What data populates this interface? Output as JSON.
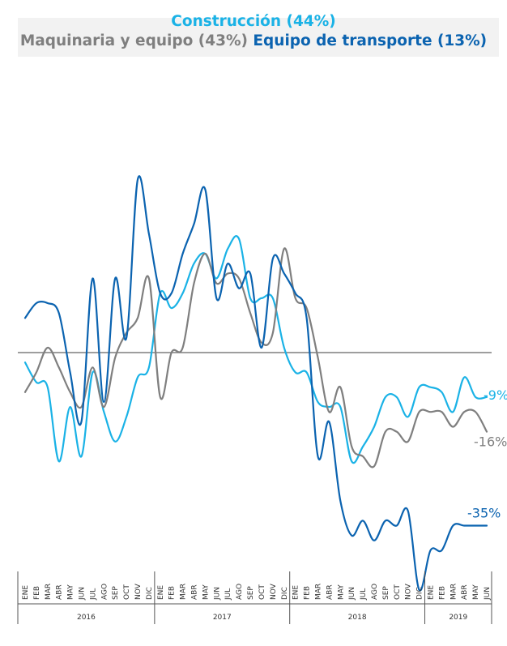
{
  "legend": {
    "construccion": "Construcción (44%)",
    "maquinaria": "Maquinaria y equipo (43%)",
    "transporte": "Equipo de transporte (13%)"
  },
  "colors": {
    "construccion": "#1ab2e6",
    "maquinaria": "#7f7f7f",
    "transporte": "#0b63b0",
    "zero_line": "#7f7f7f",
    "axis": "#555555"
  },
  "chart_data": {
    "type": "line",
    "title": "",
    "xlabel": "",
    "ylabel": "",
    "ylim": [
      -45,
      50
    ],
    "grid": false,
    "months": [
      "ENE",
      "FEB",
      "MAR",
      "ABR",
      "MAY",
      "JUN",
      "JUL",
      "AGO",
      "SEP",
      "OCT",
      "NOV",
      "DIC",
      "ENE",
      "FEB",
      "MAR",
      "ABR",
      "MAY",
      "JUN",
      "JUL",
      "AGO",
      "SEP",
      "OCT",
      "NOV",
      "DIC",
      "ENE",
      "FEB",
      "MAR",
      "ABR",
      "MAY",
      "JUN",
      "JUL",
      "AGO",
      "SEP",
      "OCT",
      "NOV",
      "DIC",
      "ENE",
      "FEB",
      "MAR",
      "ABR",
      "MAY",
      "JUN"
    ],
    "years": [
      {
        "label": "2016",
        "start": 0,
        "end": 11
      },
      {
        "label": "2017",
        "start": 12,
        "end": 23
      },
      {
        "label": "2018",
        "start": 24,
        "end": 35
      },
      {
        "label": "2019",
        "start": 36,
        "end": 41
      }
    ],
    "series": [
      {
        "key": "construccion",
        "name": "Construcción (44%)",
        "end_label": "-9%",
        "values": [
          -2,
          -6,
          -7,
          -22,
          -11,
          -21,
          -4,
          -12,
          -18,
          -13,
          -5,
          -3,
          12,
          9,
          12,
          18,
          20,
          15,
          21,
          23,
          11,
          11,
          11,
          1,
          -4,
          -4,
          -10,
          -11,
          -11,
          -22,
          -19,
          -15,
          -9,
          -9,
          -13,
          -7,
          -7,
          -8,
          -12,
          -5,
          -9,
          -9
        ]
      },
      {
        "key": "maquinaria",
        "name": "Maquinaria y equipo (43%)",
        "end_label": "-16%",
        "values": [
          -8,
          -4,
          1,
          -3,
          -8,
          -11,
          -3,
          -11,
          -1,
          4,
          7,
          15,
          -9,
          0,
          1,
          14,
          20,
          14,
          16,
          15,
          8,
          2,
          4,
          21,
          11,
          9,
          -1,
          -12,
          -7,
          -19,
          -21,
          -23,
          -16,
          -16,
          -18,
          -12,
          -12,
          -12,
          -15,
          -12,
          -12,
          -16
        ]
      },
      {
        "key": "transporte",
        "name": "Equipo de transporte (13%)",
        "end_label": "-35%",
        "values": [
          7,
          10,
          10,
          8,
          -4,
          -14,
          15,
          -10,
          15,
          3,
          35,
          24,
          12,
          12,
          20,
          26,
          33,
          11,
          18,
          13,
          16,
          1,
          19,
          16,
          12,
          7,
          -21,
          -14,
          -30,
          -37,
          -34,
          -38,
          -34,
          -35,
          -32,
          -48,
          -40,
          -40,
          -35,
          -35,
          -35,
          -35
        ]
      }
    ]
  }
}
